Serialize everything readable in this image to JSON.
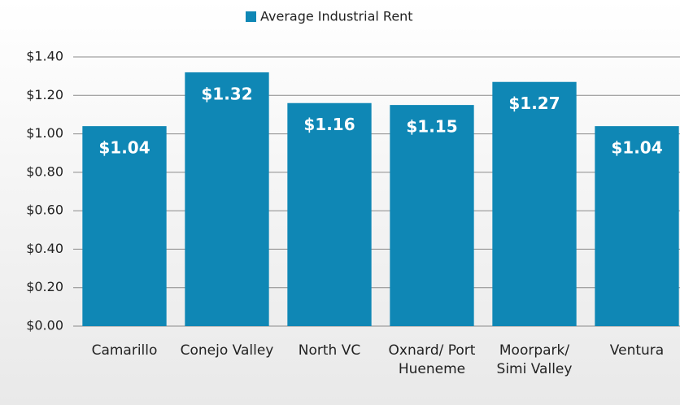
{
  "chart_data": {
    "type": "bar",
    "legend": "Average Industrial Rent",
    "categories": [
      "Camarillo",
      "Conejo Valley",
      "North VC",
      "Oxnard/ Port Hueneme",
      "Moorpark/ Simi Valley",
      "Ventura"
    ],
    "values": [
      1.04,
      1.32,
      1.16,
      1.15,
      1.27,
      1.04
    ],
    "value_labels": [
      "$1.04",
      "$1.32",
      "$1.16",
      "$1.15",
      "$1.27",
      "$1.04"
    ],
    "color": "#0f87b5",
    "ylim": [
      0,
      1.4
    ],
    "yticks": [
      {
        "value": 0,
        "label": "$0.00"
      },
      {
        "value": 0.2,
        "label": "$0.20"
      },
      {
        "value": 0.4,
        "label": "$0.40"
      },
      {
        "value": 0.6,
        "label": "$0.60"
      },
      {
        "value": 0.8,
        "label": "$0.80"
      },
      {
        "value": 1.0,
        "label": "$1.00"
      },
      {
        "value": 1.2,
        "label": "$1.20"
      },
      {
        "value": 1.4,
        "label": "$1.40"
      }
    ],
    "grid": true
  }
}
